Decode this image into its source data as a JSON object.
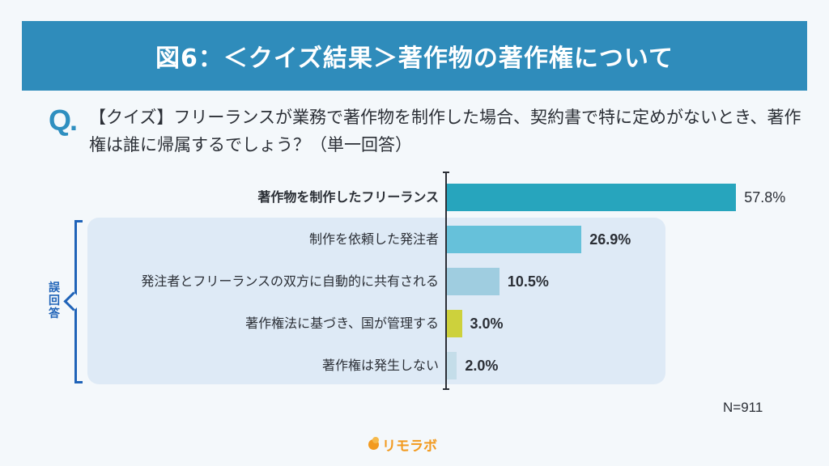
{
  "header": {
    "title": "図6：＜クイズ結果＞著作物の著作権について",
    "color": "#2f8cbb"
  },
  "question": {
    "mark": "Q.",
    "text": "【クイズ】フリーランスが業務で著作物を制作した場合、契約書で特に定めがないとき、著作権は誰に帰属するでしょう？（単一回答）"
  },
  "bracket": {
    "label": "誤回答",
    "color": "#1f63b8"
  },
  "chart_data": {
    "type": "bar",
    "orientation": "horizontal",
    "title": "図6：＜クイズ結果＞著作物の著作権について",
    "categories": [
      "著作物を制作したフリーランス",
      "制作を依頼した発注者",
      "発注者とフリーランスの双方に自動的に共有される",
      "著作権法に基づき、国が管理する",
      "著作権は発生しない"
    ],
    "values": [
      57.8,
      26.9,
      10.5,
      3.0,
      2.0
    ],
    "value_labels": [
      "57.8%",
      "26.9%",
      "10.5%",
      "3.0%",
      "2.0%"
    ],
    "colors": [
      "#27a5bd",
      "#66c1da",
      "#9fcde0",
      "#cdd13c",
      "#c4dde9"
    ],
    "correct_answer_index": 0,
    "wrong_answer_group": "誤回答",
    "xlabel": "",
    "ylabel": "",
    "xlim": [
      0,
      100
    ],
    "grid": false,
    "sample_size": "N=911"
  },
  "footer": {
    "n": "N=911",
    "logo": "リモラボ"
  }
}
